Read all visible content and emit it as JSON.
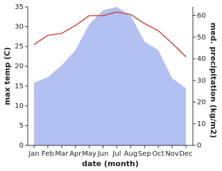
{
  "chart_data": {
    "type": "line-area",
    "xlabel": "date (month)",
    "ylabel": "max temp (C)",
    "y2label": "med. precipitation (kg/m2)",
    "categories": [
      "Jan",
      "Feb",
      "Mar",
      "Apr",
      "May",
      "Jun",
      "Jul",
      "Aug",
      "Sep",
      "Oct",
      "Nov",
      "Dec"
    ],
    "series": [
      {
        "name": "med. precipitation (kg/m2)",
        "kind": "area",
        "axis": "y2",
        "color": "#b3c0f2",
        "values": [
          29,
          31.5,
          37,
          44,
          56,
          62.5,
          64,
          60,
          48,
          44,
          31,
          26.5
        ]
      },
      {
        "name": "max temp (C)",
        "kind": "line",
        "color": "#c9504e",
        "values": [
          25.5,
          27.8,
          28.3,
          30.3,
          32.8,
          32.8,
          33.7,
          33.1,
          30.8,
          29.0,
          25.8,
          22.4
        ]
      }
    ],
    "ylim": [
      0,
      35
    ],
    "yticks": [
      0,
      5,
      10,
      15,
      20,
      25,
      30,
      35
    ],
    "y2lim": [
      0,
      64
    ],
    "y2ticks": [
      0,
      10,
      20,
      30,
      40,
      50,
      60
    ]
  }
}
